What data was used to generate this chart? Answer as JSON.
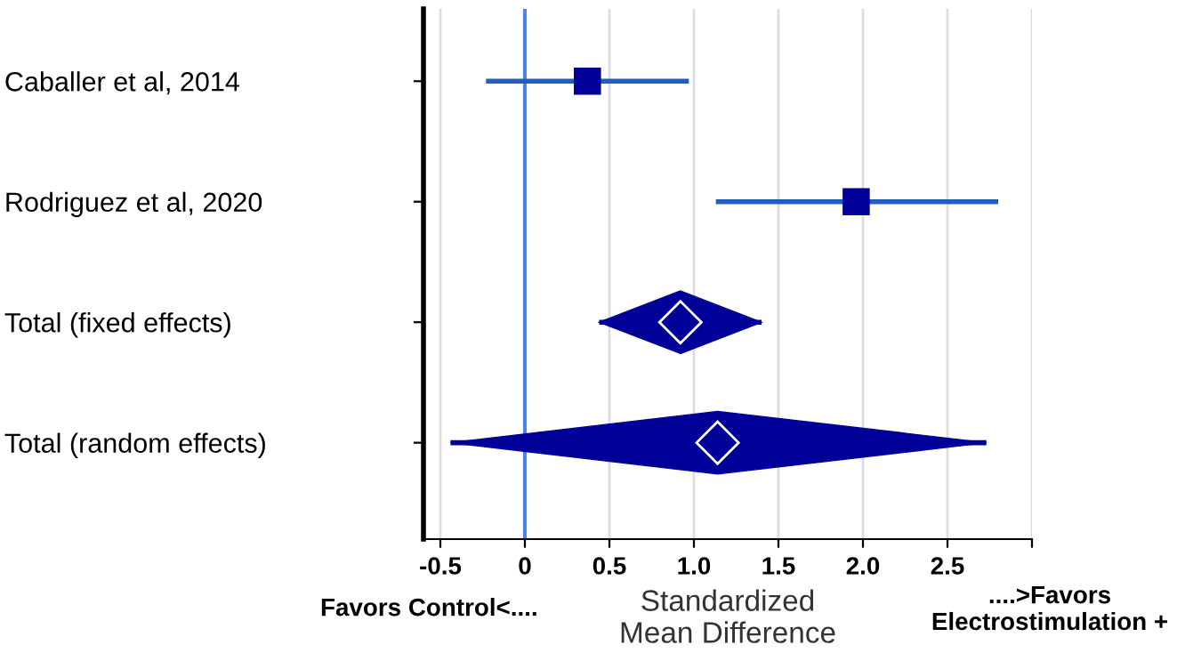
{
  "chart_data": {
    "type": "scatter",
    "orientation": "horizontal",
    "categories": [
      "Caballer et al, 2014",
      "Rodriguez et al, 2020",
      "Total (fixed effects)",
      "Total (random effects)"
    ],
    "series": [
      {
        "marker": "square",
        "color": "#000099",
        "values": [
          0.37,
          1.96,
          null,
          null
        ],
        "errors": [
          [
            -0.23,
            0.97
          ],
          [
            1.13,
            2.8
          ],
          null,
          null
        ]
      },
      {
        "marker": "diamond",
        "color": "#000099",
        "values": [
          null,
          null,
          0.92,
          1.14
        ],
        "errors": [
          null,
          null,
          [
            0.44,
            1.4
          ],
          [
            -0.44,
            2.73
          ]
        ]
      }
    ],
    "xlim": [
      -0.6,
      3.0
    ],
    "xticks": [
      -0.5,
      0,
      {
        "value": 0.5,
        "label": "0.5"
      },
      {
        "value": 1.0,
        "label": "1.0"
      },
      {
        "value": 1.5,
        "label": "1.5"
      },
      {
        "value": 2.0,
        "label": "2.0"
      },
      {
        "value": 2.5,
        "label": "2.5"
      },
      {
        "value": 3.0,
        "label": null
      }
    ],
    "xlabel": "Standardized\nMean Difference",
    "grid": "x",
    "ref_lines": [
      {
        "axis": "x",
        "value": 0,
        "color": "#4a86e8"
      }
    ],
    "annotations": [
      "Favors Control<....",
      "....>Favors\nElectrostimulation +"
    ]
  }
}
